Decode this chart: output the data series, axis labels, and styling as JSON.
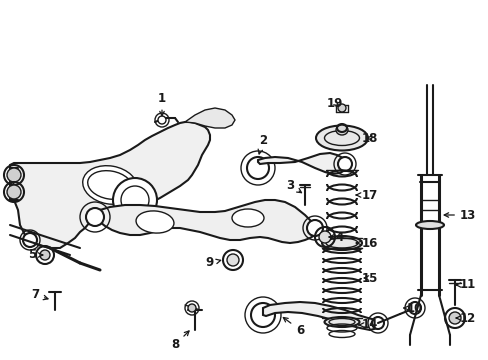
{
  "background_color": "#ffffff",
  "line_color": "#1a1a1a",
  "fig_width": 4.89,
  "fig_height": 3.6,
  "dpi": 100,
  "img_extent": [
    0,
    489,
    0,
    360
  ]
}
